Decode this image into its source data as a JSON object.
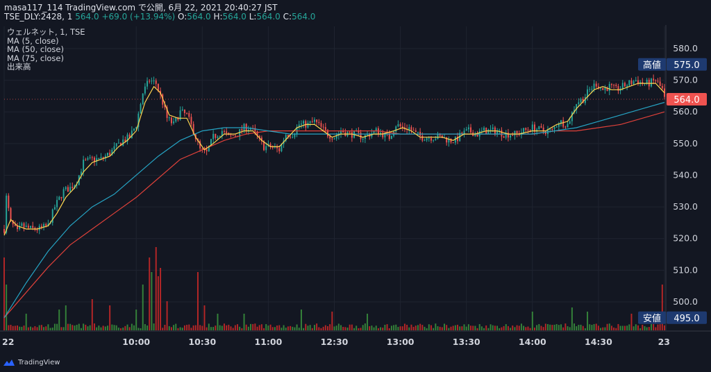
{
  "header": {
    "line1": "masa117_114 TradingView.com で公開, 6月 22, 2021 20:40:27 JST",
    "symbol_prefix": "TSE_DLY:2428, 1 ",
    "last": "564.0",
    "change": " +69.0 (+13.94%)",
    "ohlc_o_label": " O:",
    "ohlc_o": "564.0",
    "ohlc_h_label": " H:",
    "ohlc_h": "564.0",
    "ohlc_l_label": " L:",
    "ohlc_l": "564.0",
    "ohlc_c_label": " C:",
    "ohlc_c": "564.0"
  },
  "legend": {
    "symbol": "ウェルネット, 1, TSE",
    "ma5": "MA (5, close)",
    "ma50": "MA (50, close)",
    "ma75": "MA (75, close)",
    "volume": "出来高"
  },
  "footer": {
    "brand": "TradingView"
  },
  "colors": {
    "background": "#131722",
    "grid": "#1f2430",
    "up": "#26a69a",
    "down": "#ef5350",
    "volume_up": "#388e3c",
    "volume_down": "#c62828",
    "ma5": "#ffd54f",
    "ma50": "#26a4c4",
    "ma75": "#e0413a",
    "marker": "#1e3a70",
    "last": "#ef5350"
  },
  "chart_data": {
    "type": "candlestick",
    "ylim": [
      491,
      587
    ],
    "y_ticks": [
      "580.0",
      "570.0",
      "560.0",
      "550.0",
      "540.0",
      "530.0",
      "520.0",
      "510.0",
      "500.0"
    ],
    "x_ticks": [
      {
        "label": "22",
        "min": 0
      },
      {
        "label": "10:00",
        "min": 60
      },
      {
        "label": "10:30",
        "min": 90
      },
      {
        "label": "11:00",
        "min": 120
      },
      {
        "label": "12:30",
        "min": 150
      },
      {
        "label": "13:00",
        "min": 180
      },
      {
        "label": "13:30",
        "min": 210
      },
      {
        "label": "14:00",
        "min": 240
      },
      {
        "label": "14:30",
        "min": 270
      },
      {
        "label": "23",
        "min": 300
      }
    ],
    "markers": [
      {
        "label": "高値",
        "value": "575.0",
        "y": 575.0
      },
      {
        "label": "安値",
        "value": "495.0",
        "y": 495.0
      }
    ],
    "last_price": {
      "value": "564.0",
      "y": 564.0
    },
    "close_path": [
      [
        0,
        523
      ],
      [
        1,
        533
      ],
      [
        3,
        525
      ],
      [
        6,
        522
      ],
      [
        8,
        524
      ],
      [
        12,
        523
      ],
      [
        16,
        523
      ],
      [
        20,
        524
      ],
      [
        23,
        530
      ],
      [
        27,
        535
      ],
      [
        30,
        536
      ],
      [
        33,
        538
      ],
      [
        36,
        544
      ],
      [
        40,
        545
      ],
      [
        44,
        545
      ],
      [
        48,
        547
      ],
      [
        51,
        549
      ],
      [
        54,
        551
      ],
      [
        57,
        552
      ],
      [
        60,
        556
      ],
      [
        63,
        566
      ],
      [
        66,
        570
      ],
      [
        69,
        569
      ],
      [
        72,
        563
      ],
      [
        74,
        558
      ],
      [
        77,
        556
      ],
      [
        80,
        560
      ],
      [
        83,
        559
      ],
      [
        86,
        554
      ],
      [
        89,
        548
      ],
      [
        92,
        547
      ],
      [
        95,
        552
      ],
      [
        99,
        554
      ],
      [
        102,
        552
      ],
      [
        106,
        553
      ],
      [
        109,
        555
      ],
      [
        112,
        555
      ],
      [
        115,
        552
      ],
      [
        118,
        549
      ],
      [
        121,
        549
      ],
      [
        125,
        548
      ],
      [
        128,
        553
      ],
      [
        131,
        553
      ],
      [
        134,
        556
      ],
      [
        138,
        556
      ],
      [
        141,
        557
      ],
      [
        144,
        555
      ],
      [
        147,
        553
      ],
      [
        150,
        552
      ],
      [
        153,
        554
      ],
      [
        157,
        553
      ],
      [
        160,
        553
      ],
      [
        163,
        552
      ],
      [
        166,
        553
      ],
      [
        169,
        554
      ],
      [
        172,
        553
      ],
      [
        175,
        552
      ],
      [
        178,
        556
      ],
      [
        181,
        555
      ],
      [
        184,
        555
      ],
      [
        187,
        553
      ],
      [
        190,
        552
      ],
      [
        193,
        552
      ],
      [
        196,
        552
      ],
      [
        199,
        552
      ],
      [
        202,
        551
      ],
      [
        205,
        551
      ],
      [
        208,
        553
      ],
      [
        211,
        554
      ],
      [
        215,
        553
      ],
      [
        218,
        554
      ],
      [
        221,
        554
      ],
      [
        224,
        554
      ],
      [
        227,
        553
      ],
      [
        230,
        553
      ],
      [
        233,
        553
      ],
      [
        236,
        554
      ],
      [
        240,
        555
      ],
      [
        245,
        554
      ],
      [
        249,
        554
      ],
      [
        252,
        557
      ],
      [
        256,
        556
      ],
      [
        260,
        563
      ],
      [
        263,
        564
      ],
      [
        266,
        567
      ],
      [
        269,
        569
      ],
      [
        272,
        567
      ],
      [
        275,
        568
      ],
      [
        278,
        567
      ],
      [
        281,
        568
      ],
      [
        284,
        569
      ],
      [
        287,
        570
      ],
      [
        290,
        569
      ],
      [
        293,
        569
      ],
      [
        296,
        570
      ],
      [
        299,
        567
      ],
      [
        300,
        564
      ]
    ],
    "ma5_path": [
      [
        0,
        521
      ],
      [
        3,
        526
      ],
      [
        6,
        524
      ],
      [
        10,
        523
      ],
      [
        15,
        523
      ],
      [
        20,
        524
      ],
      [
        24,
        528
      ],
      [
        28,
        533
      ],
      [
        32,
        536
      ],
      [
        36,
        541
      ],
      [
        40,
        544
      ],
      [
        44,
        545
      ],
      [
        48,
        546
      ],
      [
        52,
        549
      ],
      [
        56,
        551
      ],
      [
        60,
        554
      ],
      [
        64,
        563
      ],
      [
        68,
        568
      ],
      [
        71,
        566
      ],
      [
        75,
        559
      ],
      [
        79,
        558
      ],
      [
        83,
        558
      ],
      [
        87,
        552
      ],
      [
        91,
        548
      ],
      [
        95,
        550
      ],
      [
        100,
        553
      ],
      [
        105,
        553
      ],
      [
        109,
        554
      ],
      [
        113,
        554
      ],
      [
        117,
        551
      ],
      [
        121,
        549
      ],
      [
        125,
        549
      ],
      [
        129,
        552
      ],
      [
        133,
        555
      ],
      [
        137,
        556
      ],
      [
        141,
        556
      ],
      [
        145,
        554
      ],
      [
        149,
        552
      ],
      [
        153,
        553
      ],
      [
        158,
        553
      ],
      [
        163,
        552
      ],
      [
        168,
        553
      ],
      [
        172,
        553
      ],
      [
        177,
        554
      ],
      [
        181,
        555
      ],
      [
        185,
        554
      ],
      [
        189,
        552
      ],
      [
        194,
        552
      ],
      [
        199,
        552
      ],
      [
        204,
        551
      ],
      [
        209,
        553
      ],
      [
        214,
        553
      ],
      [
        219,
        554
      ],
      [
        224,
        554
      ],
      [
        229,
        553
      ],
      [
        234,
        553
      ],
      [
        240,
        554
      ],
      [
        246,
        554
      ],
      [
        251,
        556
      ],
      [
        256,
        557
      ],
      [
        260,
        561
      ],
      [
        264,
        564
      ],
      [
        268,
        567
      ],
      [
        272,
        568
      ],
      [
        276,
        567
      ],
      [
        280,
        567
      ],
      [
        284,
        568
      ],
      [
        288,
        569
      ],
      [
        292,
        569
      ],
      [
        296,
        569
      ],
      [
        300,
        566
      ]
    ],
    "ma50_path": [
      [
        0,
        495
      ],
      [
        10,
        506
      ],
      [
        20,
        516
      ],
      [
        30,
        524
      ],
      [
        40,
        530
      ],
      [
        50,
        534
      ],
      [
        60,
        540
      ],
      [
        70,
        546
      ],
      [
        80,
        551
      ],
      [
        90,
        554
      ],
      [
        100,
        555
      ],
      [
        110,
        555
      ],
      [
        120,
        554
      ],
      [
        130,
        553
      ],
      [
        140,
        553
      ],
      [
        150,
        553
      ],
      [
        160,
        553
      ],
      [
        170,
        553
      ],
      [
        180,
        553
      ],
      [
        190,
        553
      ],
      [
        200,
        553
      ],
      [
        210,
        553
      ],
      [
        220,
        553
      ],
      [
        230,
        553
      ],
      [
        240,
        553
      ],
      [
        250,
        554
      ],
      [
        260,
        555
      ],
      [
        270,
        557
      ],
      [
        280,
        559
      ],
      [
        290,
        561
      ],
      [
        300,
        563
      ]
    ],
    "ma75_path": [
      [
        0,
        495
      ],
      [
        10,
        503
      ],
      [
        20,
        511
      ],
      [
        30,
        518
      ],
      [
        40,
        523
      ],
      [
        50,
        528
      ],
      [
        60,
        533
      ],
      [
        70,
        539
      ],
      [
        80,
        545
      ],
      [
        90,
        548
      ],
      [
        100,
        551
      ],
      [
        110,
        553
      ],
      [
        120,
        554
      ],
      [
        130,
        554
      ],
      [
        140,
        554
      ],
      [
        150,
        554
      ],
      [
        160,
        554
      ],
      [
        170,
        554
      ],
      [
        180,
        553
      ],
      [
        190,
        553
      ],
      [
        200,
        553
      ],
      [
        210,
        553
      ],
      [
        220,
        553
      ],
      [
        230,
        553
      ],
      [
        240,
        553
      ],
      [
        250,
        554
      ],
      [
        260,
        554
      ],
      [
        270,
        555
      ],
      [
        280,
        556
      ],
      [
        290,
        558
      ],
      [
        300,
        560
      ]
    ],
    "volume_spikes": [
      [
        0,
        35
      ],
      [
        1,
        22
      ],
      [
        10,
        8
      ],
      [
        25,
        10
      ],
      [
        28,
        12
      ],
      [
        40,
        15
      ],
      [
        48,
        12
      ],
      [
        60,
        10
      ],
      [
        63,
        22
      ],
      [
        66,
        35
      ],
      [
        67,
        28
      ],
      [
        69,
        40
      ],
      [
        70,
        26
      ],
      [
        71,
        30
      ],
      [
        74,
        14
      ],
      [
        88,
        28
      ],
      [
        91,
        12
      ],
      [
        97,
        8
      ],
      [
        109,
        8
      ],
      [
        135,
        10
      ],
      [
        149,
        9
      ],
      [
        165,
        8
      ],
      [
        240,
        9
      ],
      [
        258,
        11
      ],
      [
        265,
        9
      ],
      [
        285,
        8
      ],
      [
        299,
        22
      ]
    ]
  }
}
